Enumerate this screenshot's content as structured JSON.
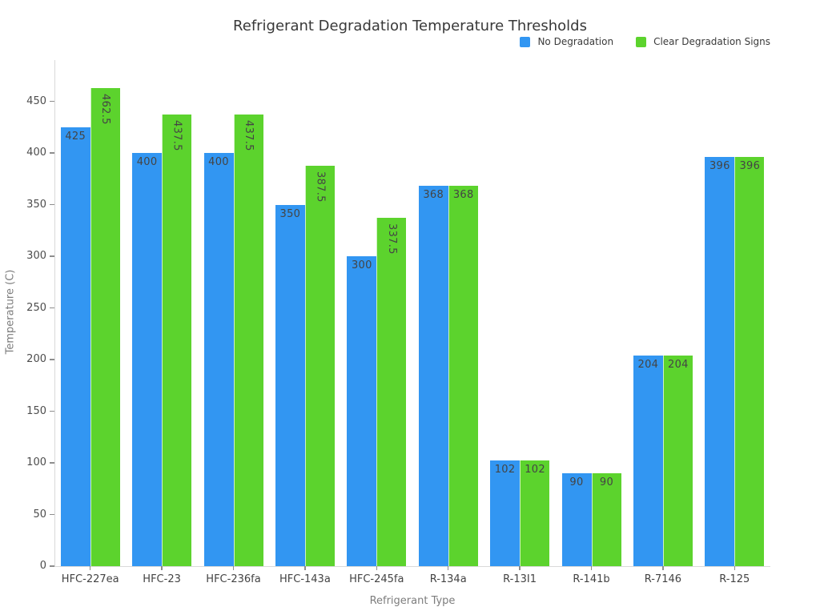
{
  "chart_data": {
    "type": "bar",
    "title": "Refrigerant Degradation Temperature Thresholds",
    "xlabel": "Refrigerant Type",
    "ylabel": "Temperature (C)",
    "categories": [
      "HFC-227ea",
      "HFC-23",
      "HFC-236fa",
      "HFC-143a",
      "HFC-245fa",
      "R-134a",
      "R-13I1",
      "R-141b",
      "R-7146",
      "R-125"
    ],
    "series": [
      {
        "name": "No Degradation",
        "color": "#3296F2",
        "values": [
          425,
          400,
          400,
          350,
          300,
          368,
          102,
          90,
          204,
          396
        ]
      },
      {
        "name": "Clear Degradation Signs",
        "color": "#5CD32D",
        "values": [
          462.5,
          437.5,
          437.5,
          387.5,
          337.5,
          368,
          102,
          90,
          204,
          396
        ]
      }
    ],
    "ylim": [
      0,
      490
    ],
    "yticks": [
      0,
      50,
      100,
      150,
      200,
      250,
      300,
      350,
      400,
      450
    ],
    "legend_position": "top-right",
    "grid": false,
    "value_labels": "inside-top",
    "value_label_color": "#444444",
    "background_color": "#ffffff",
    "axis_line_color": "#d9d9d9"
  }
}
